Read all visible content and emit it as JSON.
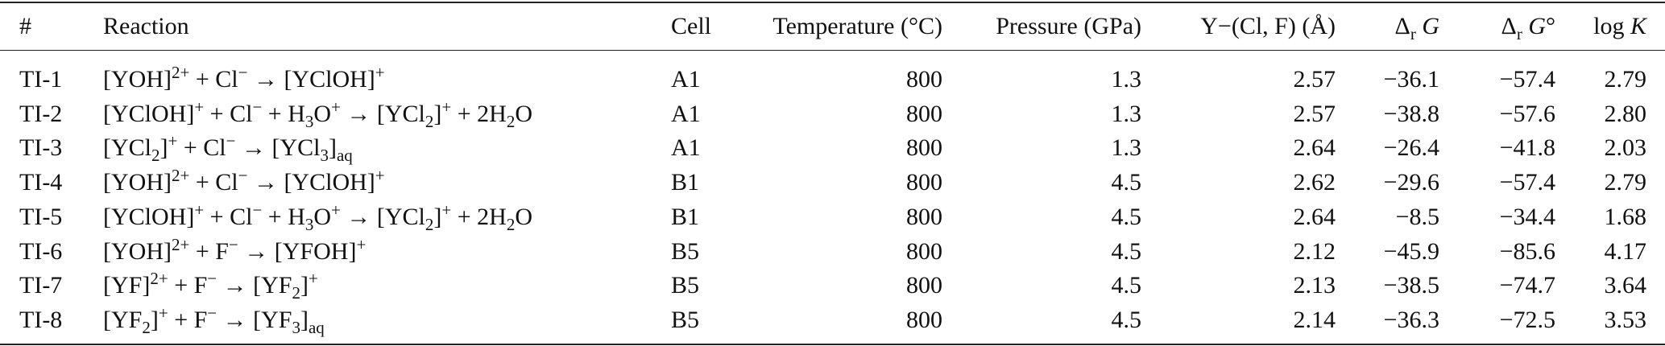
{
  "table": {
    "headers": [
      [
        {
          "text": "#"
        }
      ],
      [
        {
          "text": "Reaction"
        }
      ],
      [
        {
          "text": "Cell"
        }
      ],
      [
        {
          "text": "Temperature (°C)"
        }
      ],
      [
        {
          "text": "Pressure (GPa)"
        }
      ],
      [
        {
          "text": "Y−(Cl, F) (Å)"
        }
      ],
      [
        {
          "text": "Δ"
        },
        {
          "sub": "r"
        },
        {
          "i": " G"
        }
      ],
      [
        {
          "text": "Δ"
        },
        {
          "sub": "r"
        },
        {
          "i": " G"
        },
        {
          "text": "°"
        }
      ],
      [
        {
          "text": "log "
        },
        {
          "i": "K"
        }
      ]
    ],
    "rows": [
      [
        "TI-1",
        [
          {
            "text": "[YOH]"
          },
          {
            "sup": "2+"
          },
          {
            "text": " + Cl"
          },
          {
            "sup": "−"
          },
          {
            "text": " → [YClOH]"
          },
          {
            "sup": "+"
          }
        ],
        "A1",
        "800",
        "1.3",
        "2.57",
        "−36.1",
        "−57.4",
        "2.79"
      ],
      [
        "TI-2",
        [
          {
            "text": "[YClOH]"
          },
          {
            "sup": "+"
          },
          {
            "text": " + Cl"
          },
          {
            "sup": "−"
          },
          {
            "text": " + H"
          },
          {
            "sub": "3"
          },
          {
            "text": "O"
          },
          {
            "sup": "+"
          },
          {
            "text": " → [YCl"
          },
          {
            "sub": "2"
          },
          {
            "text": "]"
          },
          {
            "sup": "+"
          },
          {
            "text": " + 2H"
          },
          {
            "sub": "2"
          },
          {
            "text": "O"
          }
        ],
        "A1",
        "800",
        "1.3",
        "2.57",
        "−38.8",
        "−57.6",
        "2.80"
      ],
      [
        "TI-3",
        [
          {
            "text": "[YCl"
          },
          {
            "sub": "2"
          },
          {
            "text": "]"
          },
          {
            "sup": "+"
          },
          {
            "text": " + Cl"
          },
          {
            "sup": "−"
          },
          {
            "text": " → [YCl"
          },
          {
            "sub": "3"
          },
          {
            "text": "]"
          },
          {
            "sub": "aq"
          }
        ],
        "A1",
        "800",
        "1.3",
        "2.64",
        "−26.4",
        "−41.8",
        "2.03"
      ],
      [
        "TI-4",
        [
          {
            "text": "[YOH]"
          },
          {
            "sup": "2+"
          },
          {
            "text": " + Cl"
          },
          {
            "sup": "−"
          },
          {
            "text": " → [YClOH]"
          },
          {
            "sup": "+"
          }
        ],
        "B1",
        "800",
        "4.5",
        "2.62",
        "−29.6",
        "−57.4",
        "2.79"
      ],
      [
        "TI-5",
        [
          {
            "text": "[YClOH]"
          },
          {
            "sup": "+"
          },
          {
            "text": " + Cl"
          },
          {
            "sup": "−"
          },
          {
            "text": " + H"
          },
          {
            "sub": "3"
          },
          {
            "text": "O"
          },
          {
            "sup": "+"
          },
          {
            "text": " → [YCl"
          },
          {
            "sub": "2"
          },
          {
            "text": "]"
          },
          {
            "sup": "+"
          },
          {
            "text": " + 2H"
          },
          {
            "sub": "2"
          },
          {
            "text": "O"
          }
        ],
        "B1",
        "800",
        "4.5",
        "2.64",
        "−8.5",
        "−34.4",
        "1.68"
      ],
      [
        "TI-6",
        [
          {
            "text": "[YOH]"
          },
          {
            "sup": "2+"
          },
          {
            "text": " + F"
          },
          {
            "sup": "−"
          },
          {
            "text": " → [YFOH]"
          },
          {
            "sup": "+"
          }
        ],
        "B5",
        "800",
        "4.5",
        "2.12",
        "−45.9",
        "−85.6",
        "4.17"
      ],
      [
        "TI-7",
        [
          {
            "text": "[YF]"
          },
          {
            "sup": "2+"
          },
          {
            "text": " + F"
          },
          {
            "sup": "−"
          },
          {
            "text": " → [YF"
          },
          {
            "sub": "2"
          },
          {
            "text": "]"
          },
          {
            "sup": "+"
          }
        ],
        "B5",
        "800",
        "4.5",
        "2.13",
        "−38.5",
        "−74.7",
        "3.64"
      ],
      [
        "TI-8",
        [
          {
            "text": "[YF"
          },
          {
            "sub": "2"
          },
          {
            "text": "]"
          },
          {
            "sup": "+"
          },
          {
            "text": " + F"
          },
          {
            "sup": "−"
          },
          {
            "text": " → [YF"
          },
          {
            "sub": "3"
          },
          {
            "text": "]"
          },
          {
            "sub": "aq"
          }
        ],
        "B5",
        "800",
        "4.5",
        "2.14",
        "−36.3",
        "−72.5",
        "3.53"
      ]
    ]
  }
}
